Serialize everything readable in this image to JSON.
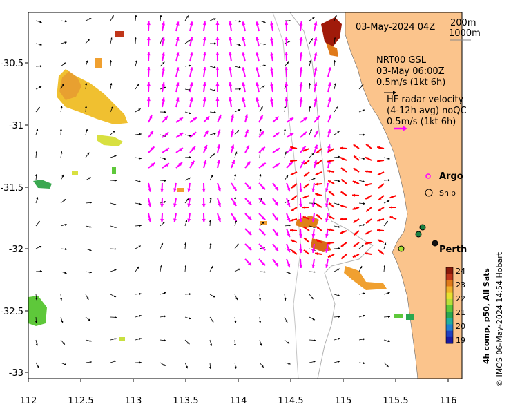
{
  "map": {
    "timestamp": "03-May-2024 04Z",
    "scale_labels": [
      "200m",
      "1000m"
    ],
    "gsl_text": [
      "NRT00 GSL",
      "03-May 06:00Z",
      "0.5m/s (1kt 6h)"
    ],
    "hf_text": [
      "HF radar velocity",
      "(4-12h avg) noQC",
      "0.5m/s (1kt 6h)"
    ],
    "legend": {
      "argo": "Argo",
      "ship": "Ship"
    },
    "place_label": "Perth",
    "x_ticks": [
      "112",
      "112.5",
      "113",
      "113.5",
      "114",
      "114.5",
      "115",
      "115.5",
      "116"
    ],
    "y_ticks": [
      "-30.5",
      "-31",
      "-31.5",
      "-32",
      "-32.5",
      "-33"
    ],
    "colorbar": {
      "title": "4h comp, p50, All Sats",
      "ticks": [
        "24",
        "23",
        "22",
        "21",
        "20",
        "19"
      ],
      "colors": [
        "#8b1a0a",
        "#c0361a",
        "#e07a1a",
        "#f0b22a",
        "#e8e030",
        "#b8e03a",
        "#5ec83a",
        "#2aa850",
        "#20b0a0",
        "#2080d0",
        "#2040c0",
        "#1a1aa0"
      ]
    },
    "credit": "© IMOS 06-May-2024 14:54 Hobart",
    "colors": {
      "land": "#fbc48c",
      "gsl_arrow": "#000000",
      "hf_arrow": "#ff00ff",
      "hf_strong": "#ff0000"
    }
  }
}
